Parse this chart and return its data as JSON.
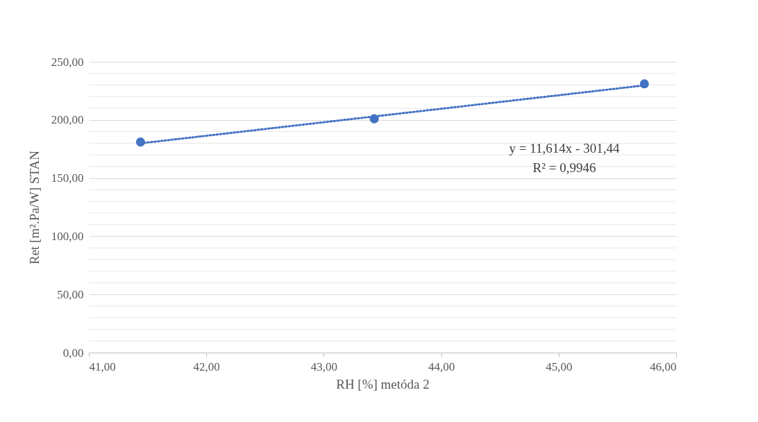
{
  "chart_data": {
    "type": "scatter",
    "xlabel": "RH [%] metóda 2",
    "ylabel": "Ret [m².Pa/W] STAN",
    "x": [
      41.44,
      43.43,
      45.73
    ],
    "series": [
      {
        "color": "#4472c4",
        "values": [
          181,
          201,
          231
        ],
        "marker": "circle"
      },
      {
        "type": "line",
        "color": "#4472c4",
        "line_style": "dotted",
        "x": [
          41.44,
          45.73
        ],
        "values": [
          179.9,
          229.7
        ]
      }
    ],
    "annotations": [
      "y = 11,614x - 301,44",
      "R² = 0,9946"
    ],
    "xlim": [
      41,
      46
    ],
    "xticks": [
      {
        "value": 41,
        "label": "41,00"
      },
      {
        "value": 42,
        "label": "42,00"
      },
      {
        "value": 43,
        "label": "43,00"
      },
      {
        "value": 44,
        "label": "44,00"
      },
      {
        "value": 45,
        "label": "45,00"
      },
      {
        "value": 46,
        "label": "46,00"
      }
    ],
    "ylim": [
      0,
      250
    ],
    "yticks": [
      {
        "value": 0,
        "label": "0,00"
      },
      {
        "value": 10,
        "label": null
      },
      {
        "value": 20,
        "label": null
      },
      {
        "value": 30,
        "label": null
      },
      {
        "value": 40,
        "label": null
      },
      {
        "value": 50,
        "label": "50,00"
      },
      {
        "value": 60,
        "label": null
      },
      {
        "value": 70,
        "label": null
      },
      {
        "value": 80,
        "label": null
      },
      {
        "value": 90,
        "label": null
      },
      {
        "value": 100,
        "label": "100,00"
      },
      {
        "value": 110,
        "label": null
      },
      {
        "value": 120,
        "label": null
      },
      {
        "value": 130,
        "label": null
      },
      {
        "value": 140,
        "label": null
      },
      {
        "value": 150,
        "label": "150,00"
      },
      {
        "value": 160,
        "label": null
      },
      {
        "value": 170,
        "label": null
      },
      {
        "value": 180,
        "label": null
      },
      {
        "value": 190,
        "label": null
      },
      {
        "value": 200,
        "label": "200,00"
      },
      {
        "value": 210,
        "label": null
      },
      {
        "value": 220,
        "label": null
      },
      {
        "value": 230,
        "label": null
      },
      {
        "value": 240,
        "label": null
      },
      {
        "value": 250,
        "label": "250,00"
      }
    ],
    "grid": "y"
  }
}
